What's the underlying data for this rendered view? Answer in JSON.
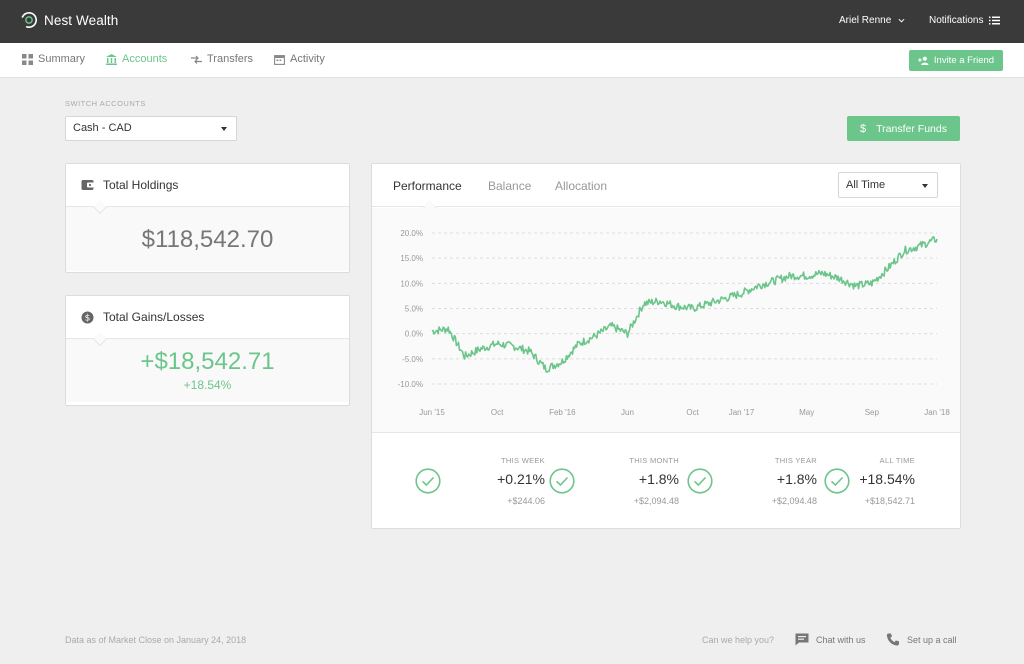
{
  "brand": {
    "name": "Nest Wealth",
    "logo_icon": "nest-ring-icon"
  },
  "topbar": {
    "user_name": "Ariel Renne",
    "notifications_label": "Notifications"
  },
  "nav": {
    "items": [
      {
        "label": "Summary",
        "icon": "grid-icon",
        "active": false
      },
      {
        "label": "Accounts",
        "icon": "bank-icon",
        "active": true
      },
      {
        "label": "Transfers",
        "icon": "transfer-arrows-icon",
        "active": false
      },
      {
        "label": "Activity",
        "icon": "calendar-icon",
        "active": false
      }
    ],
    "invite_label": "Invite a Friend"
  },
  "account_switch": {
    "label": "SWITCH ACCOUNTS",
    "selected": "Cash - CAD"
  },
  "transfer_button": {
    "symbol": "$",
    "label": "Transfer Funds"
  },
  "holdings": {
    "title": "Total Holdings",
    "value": "$118,542.70"
  },
  "gains": {
    "title": "Total Gains/Losses",
    "value": "+$18,542.71",
    "percent": "+18.54%"
  },
  "performance": {
    "tabs": [
      "Performance",
      "Balance",
      "Allocation"
    ],
    "active_tab": "Performance",
    "range_selected": "All Time",
    "stats": [
      {
        "label": "THIS WEEK",
        "percent": "+0.21%",
        "amount": "+$244.06"
      },
      {
        "label": "THIS MONTH",
        "percent": "+1.8%",
        "amount": "+$2,094.48"
      },
      {
        "label": "THIS YEAR",
        "percent": "+1.8%",
        "amount": "+$2,094.48"
      },
      {
        "label": "ALL TIME",
        "percent": "+18.54%",
        "amount": "+$18,542.71"
      }
    ]
  },
  "chart_data": {
    "type": "line",
    "title": "",
    "xlabel": "",
    "ylabel": "",
    "y_tick_labels": [
      "20.0%",
      "15.0%",
      "10.0%",
      "5.0%",
      "0.0%",
      "-5.0%",
      "-10.0%"
    ],
    "y_ticks": [
      20,
      15,
      10,
      5,
      0,
      -5,
      -10
    ],
    "x_tick_labels": [
      "Jun '15",
      "Oct",
      "Feb '16",
      "Jun",
      "Oct",
      "Jan '17",
      "May",
      "Sep",
      "Jan '18"
    ],
    "x_ticks": [
      "2015-06",
      "2015-10",
      "2016-02",
      "2016-06",
      "2016-10",
      "2017-01",
      "2017-05",
      "2017-09",
      "2018-01"
    ],
    "ylim": [
      -10,
      20
    ],
    "xlim": [
      "2015-06",
      "2018-01"
    ],
    "grid": true,
    "line_color": "#6cc58a",
    "series": [
      {
        "x": [
          "2015-06",
          "2015-07",
          "2015-08",
          "2015-09",
          "2015-10",
          "2015-11",
          "2015-12",
          "2016-01",
          "2016-02",
          "2016-03",
          "2016-04",
          "2016-05",
          "2016-06",
          "2016-07",
          "2016-08",
          "2016-09",
          "2016-10",
          "2016-11",
          "2016-12",
          "2017-01",
          "2017-02",
          "2017-03",
          "2017-04",
          "2017-05",
          "2017-06",
          "2017-07",
          "2017-08",
          "2017-09",
          "2017-10",
          "2017-11",
          "2017-12",
          "2018-01"
        ],
        "values": [
          0.5,
          1.0,
          -4.5,
          -3.0,
          -2.0,
          -2.5,
          -3.5,
          -7.0,
          -5.5,
          -2.0,
          -0.5,
          1.5,
          0.0,
          6.0,
          6.5,
          5.5,
          5.0,
          6.0,
          7.0,
          8.0,
          9.5,
          10.5,
          11.5,
          11.5,
          12.0,
          11.0,
          9.5,
          10.0,
          13.0,
          16.5,
          17.5,
          18.8
        ]
      }
    ]
  },
  "footer": {
    "data_note": "Data as of Market Close on January 24, 2018",
    "help_label": "Can we help you?",
    "chat_label": "Chat with us",
    "call_label": "Set up a call"
  }
}
